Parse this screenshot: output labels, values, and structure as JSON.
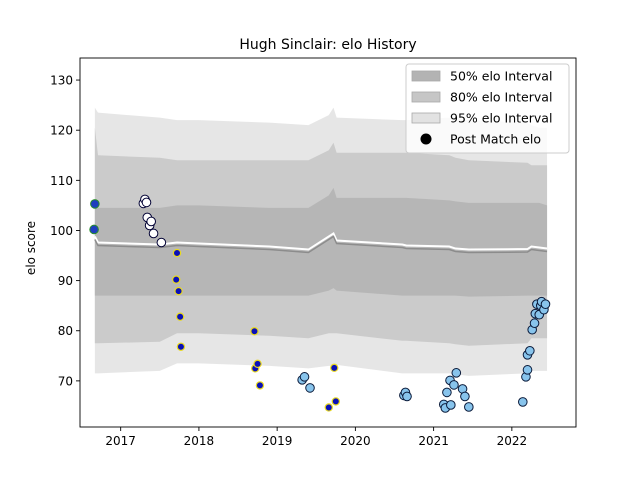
{
  "chart_data": {
    "type": "area",
    "title": "Hugh Sinclair: elo History",
    "xlabel": "",
    "ylabel": "elo score",
    "xlim": [
      2016.48,
      2022.82
    ],
    "ylim": [
      60.8,
      134.4
    ],
    "x_ticks": [
      2017,
      2018,
      2019,
      2020,
      2021,
      2022
    ],
    "y_ticks": [
      70,
      80,
      90,
      100,
      110,
      120,
      130
    ],
    "grid": false,
    "legend_position": "top-right",
    "legend": [
      {
        "label": "50% elo Interval",
        "kind": "patch",
        "color": "#b3b3b3"
      },
      {
        "label": "80% elo Interval",
        "kind": "patch",
        "color": "#c6c6c6"
      },
      {
        "label": "95% elo Interval",
        "kind": "patch",
        "color": "#e2e2e2"
      },
      {
        "label": "Post Match elo",
        "kind": "marker",
        "color": "#000000"
      }
    ],
    "interval_x": [
      2016.67,
      2016.71,
      2017.5,
      2017.72,
      2018.0,
      2018.9,
      2019.4,
      2019.66,
      2019.72,
      2019.76,
      2020.6,
      2020.65,
      2021.2,
      2021.28,
      2021.45,
      2022.2,
      2022.25,
      2022.35,
      2022.45
    ],
    "mean": [
      98.2,
      97.0,
      96.6,
      97.0,
      96.8,
      96.2,
      95.6,
      98.2,
      98.8,
      97.4,
      96.6,
      96.4,
      96.2,
      95.8,
      95.6,
      95.7,
      96.2,
      96.0,
      95.8
    ],
    "band_95": {
      "lower": [
        71.5,
        71.5,
        72.0,
        73.5,
        73.5,
        73.0,
        72.5,
        73.0,
        73.0,
        73.2,
        71.5,
        71.5,
        71.5,
        71.3,
        71.0,
        71.5,
        72.0,
        72.0,
        72.0
      ],
      "upper": [
        124.5,
        123.5,
        122.5,
        122.0,
        122.0,
        121.5,
        121.0,
        123.0,
        124.5,
        122.5,
        122.0,
        122.0,
        122.5,
        122.3,
        122.0,
        121.5,
        121.0,
        120.5,
        120.5
      ]
    },
    "band_80": {
      "lower": [
        77.5,
        77.5,
        77.8,
        79.5,
        79.5,
        79.0,
        78.5,
        79.5,
        79.5,
        79.5,
        78.0,
        78.0,
        77.5,
        77.3,
        77.0,
        77.5,
        78.5,
        78.5,
        78.5
      ],
      "upper": [
        120.5,
        115.0,
        114.5,
        114.0,
        114.0,
        114.0,
        114.0,
        116.0,
        117.5,
        115.5,
        115.5,
        115.5,
        115.0,
        114.5,
        114.0,
        113.5,
        113.0,
        113.0,
        113.0
      ]
    },
    "band_50": {
      "lower": [
        87.0,
        87.0,
        87.0,
        87.0,
        87.0,
        87.0,
        87.0,
        88.0,
        88.5,
        88.0,
        87.0,
        87.0,
        87.0,
        87.0,
        86.8,
        87.0,
        87.0,
        87.0,
        87.0
      ],
      "upper": [
        104.5,
        104.5,
        104.5,
        105.0,
        105.0,
        104.5,
        104.5,
        107.0,
        108.5,
        106.5,
        106.5,
        106.5,
        106.0,
        105.8,
        105.5,
        105.5,
        105.5,
        105.5,
        105.0
      ]
    },
    "line_colors": {
      "mean": "#8c8c8c",
      "highlight": "#ffffff"
    },
    "series": [
      {
        "name": "",
        "fill": "#1f3fbf",
        "edge": "#2a8f2a",
        "points": [
          [
            2016.67,
            105.3
          ],
          [
            2016.66,
            100.2
          ]
        ]
      },
      {
        "name": "",
        "fill": "#ffffff",
        "edge": "#000033",
        "points": [
          [
            2017.29,
            105.4
          ],
          [
            2017.31,
            106.2
          ],
          [
            2017.33,
            105.6
          ],
          [
            2017.34,
            102.6
          ],
          [
            2017.37,
            101.0
          ],
          [
            2017.39,
            101.8
          ],
          [
            2017.42,
            99.4
          ],
          [
            2017.52,
            97.6
          ]
        ]
      },
      {
        "name": "",
        "fill": "#0a10b8",
        "edge": "#e8d820",
        "points": [
          [
            2017.72,
            95.5
          ],
          [
            2017.71,
            90.2
          ],
          [
            2017.74,
            87.9
          ],
          [
            2017.76,
            82.8
          ],
          [
            2017.77,
            76.8
          ],
          [
            2018.71,
            79.9
          ],
          [
            2018.72,
            72.5
          ],
          [
            2018.75,
            73.4
          ],
          [
            2018.78,
            69.1
          ],
          [
            2019.66,
            64.7
          ],
          [
            2019.73,
            72.6
          ],
          [
            2019.75,
            65.9
          ]
        ]
      },
      {
        "name": "",
        "fill": "#88c4ec",
        "edge": "#0a1a3a",
        "points": [
          [
            2019.32,
            70.2
          ],
          [
            2019.35,
            70.8
          ],
          [
            2019.42,
            68.6
          ],
          [
            2020.62,
            67.1
          ],
          [
            2020.64,
            67.7
          ],
          [
            2020.66,
            66.9
          ],
          [
            2021.13,
            65.3
          ],
          [
            2021.15,
            64.6
          ],
          [
            2021.17,
            67.7
          ],
          [
            2021.21,
            70.1
          ],
          [
            2021.22,
            65.2
          ],
          [
            2021.26,
            69.2
          ],
          [
            2021.29,
            71.6
          ],
          [
            2021.37,
            68.4
          ],
          [
            2021.4,
            66.9
          ],
          [
            2021.45,
            64.8
          ],
          [
            2022.14,
            65.8
          ],
          [
            2022.18,
            70.8
          ],
          [
            2022.2,
            72.2
          ],
          [
            2022.2,
            75.2
          ],
          [
            2022.23,
            76.0
          ],
          [
            2022.26,
            80.2
          ],
          [
            2022.29,
            81.5
          ],
          [
            2022.3,
            83.4
          ],
          [
            2022.32,
            85.3
          ],
          [
            2022.35,
            83.2
          ],
          [
            2022.37,
            85.0
          ],
          [
            2022.38,
            85.8
          ],
          [
            2022.41,
            84.2
          ],
          [
            2022.43,
            85.3
          ]
        ]
      }
    ]
  }
}
